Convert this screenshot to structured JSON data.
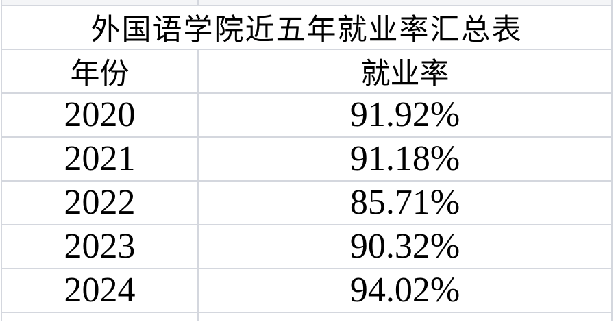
{
  "app": {
    "kind": "spreadsheet-table-screenshot"
  },
  "colors": {
    "gridline": "#d4d7de",
    "background": "#ffffff",
    "text": "#000000",
    "partial_row_tint": "#f4f5f7"
  },
  "table": {
    "title": "外国语学院近五年就业率汇总表",
    "columns": [
      "年份",
      "就业率"
    ],
    "rows": [
      [
        "2020",
        "91.92%"
      ],
      [
        "2021",
        "91.18%"
      ],
      [
        "2022",
        "85.71%"
      ],
      [
        "2023",
        "90.32%"
      ],
      [
        "2024",
        "94.02%"
      ]
    ]
  },
  "chart_data": {
    "type": "table",
    "title": "外国语学院近五年就业率汇总表",
    "categories": [
      "2020",
      "2021",
      "2022",
      "2023",
      "2024"
    ],
    "values": [
      91.92,
      91.18,
      85.71,
      90.32,
      94.02
    ],
    "xlabel": "年份",
    "ylabel": "就业率"
  }
}
